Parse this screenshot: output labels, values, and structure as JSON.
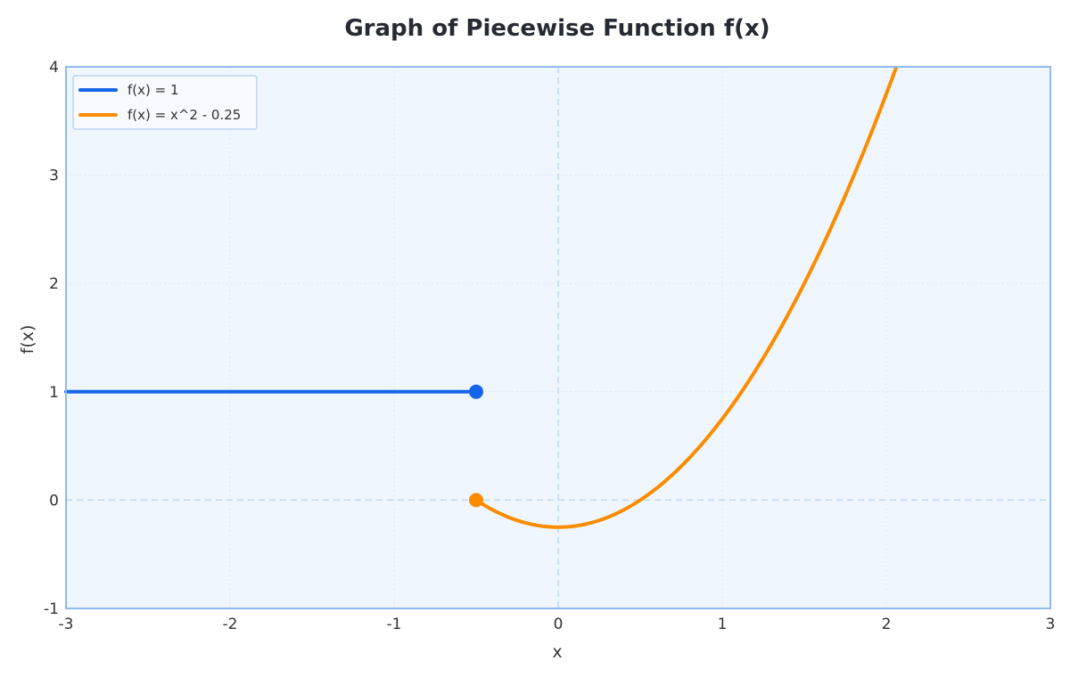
{
  "chart_data": {
    "type": "line",
    "title": "Graph of Piecewise Function f(x)",
    "xlabel": "x",
    "ylabel": "f(x)",
    "xlim": [
      -3,
      3
    ],
    "ylim": [
      -1,
      4
    ],
    "x_ticks": [
      -3,
      -2,
      -1,
      0,
      1,
      2,
      3
    ],
    "y_ticks": [
      -1,
      0,
      1,
      2,
      3,
      4
    ],
    "x_tick_labels": [
      "-3",
      "-2",
      "-1",
      "0",
      "1",
      "2",
      "3"
    ],
    "y_tick_labels": [
      "-1",
      "0",
      "1",
      "2",
      "3",
      "4"
    ],
    "grid": true,
    "legend_position": "top-left",
    "series": [
      {
        "name": "f(x) = 1",
        "color": "#1565e8",
        "kind": "constant",
        "constant": 1,
        "x_range": [
          -3,
          -0.5
        ],
        "endpoint": {
          "x": -0.5,
          "y": 1
        }
      },
      {
        "name": "f(x) = x^2 - 0.25",
        "color": "#fb8c00",
        "kind": "quadratic",
        "coefficients": {
          "a": 1,
          "b": 0,
          "c": -0.25
        },
        "x_range": [
          -0.5,
          2.06
        ],
        "endpoint": {
          "x": -0.5,
          "y": 0
        }
      }
    ],
    "colors": {
      "plot_background": "#f0f6fd",
      "axes_frame": "#90bbf0",
      "zero_lines": "#bdd6f5",
      "grid": "#dce8f6"
    }
  }
}
